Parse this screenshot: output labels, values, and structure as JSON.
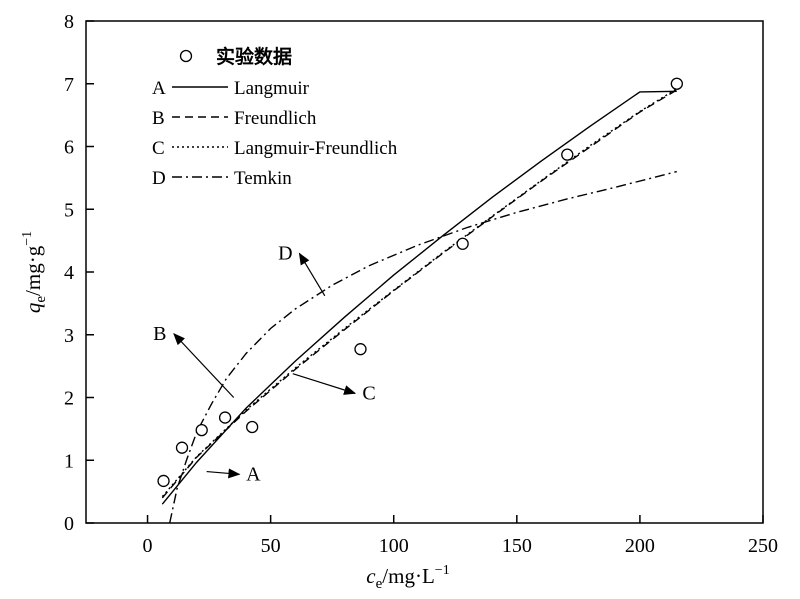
{
  "chart_data": {
    "type": "scatter",
    "xlim": [
      -25,
      250
    ],
    "ylim": [
      0,
      8
    ],
    "x_ticks": [
      0,
      50,
      100,
      150,
      200,
      250
    ],
    "y_ticks": [
      0,
      1,
      2,
      3,
      4,
      5,
      6,
      7,
      8
    ],
    "x_tick_labels": [
      "0",
      "50",
      "100",
      "150",
      "200",
      "250"
    ],
    "y_tick_labels": [
      "0",
      "1",
      "2",
      "3",
      "4",
      "5",
      "6",
      "7",
      "8"
    ],
    "xlabel": {
      "main": "c",
      "sub": "e",
      "unit": "/mg·L",
      "sup": "−1"
    },
    "ylabel": {
      "main": "q",
      "sub": "e",
      "unit": "/mg·g",
      "sup": "−1"
    },
    "grid": false,
    "legend_position": "top-left",
    "legend": [
      {
        "letter": "",
        "name": "实验数据",
        "style": "marker"
      },
      {
        "letter": "A",
        "name": "Langmuir",
        "style": "solid"
      },
      {
        "letter": "B",
        "name": "Freundlich",
        "style": "dashed"
      },
      {
        "letter": "C",
        "name": "Langmuir-Freundlich",
        "style": "dotted"
      },
      {
        "letter": "D",
        "name": "Temkin",
        "style": "dashdot"
      }
    ],
    "scatter_points": {
      "x": [
        6.5,
        14,
        22,
        31.5,
        42.5,
        86.5,
        128,
        170.5,
        215
      ],
      "y": [
        0.67,
        1.2,
        1.48,
        1.68,
        1.53,
        2.77,
        4.45,
        5.87,
        7.0
      ]
    },
    "series": [
      {
        "letter": "A",
        "style": "solid",
        "x": [
          6,
          20,
          40,
          60,
          80,
          100,
          120,
          140,
          160,
          180,
          200,
          215
        ],
        "y": [
          0.3,
          0.97,
          1.83,
          2.58,
          3.28,
          3.95,
          4.58,
          5.19,
          5.77,
          6.33,
          6.87,
          6.88
        ]
      },
      {
        "letter": "B",
        "style": "dashed",
        "x": [
          6,
          20,
          40,
          60,
          80,
          100,
          120,
          140,
          160,
          180,
          200,
          215
        ],
        "y": [
          0.4,
          1.05,
          1.78,
          2.45,
          3.08,
          3.7,
          4.3,
          4.88,
          5.45,
          6.0,
          6.55,
          6.9
        ]
      },
      {
        "letter": "C",
        "style": "dotted",
        "x": [
          6,
          20,
          40,
          60,
          80,
          100,
          120,
          140,
          160,
          180,
          200,
          215
        ],
        "y": [
          0.42,
          1.06,
          1.8,
          2.47,
          3.1,
          3.71,
          4.31,
          4.89,
          5.46,
          6.02,
          6.56,
          6.92
        ]
      },
      {
        "letter": "D",
        "style": "dashdot",
        "x": [
          9,
          12,
          16,
          20,
          26,
          32,
          40,
          50,
          60,
          75,
          90,
          110,
          130,
          150,
          170,
          190,
          215
        ],
        "y": [
          0.0,
          0.55,
          1.02,
          1.45,
          1.9,
          2.3,
          2.7,
          3.1,
          3.41,
          3.79,
          4.1,
          4.43,
          4.71,
          4.95,
          5.16,
          5.35,
          5.6
        ]
      }
    ],
    "annotations": [
      {
        "text": "A",
        "label_x": 43,
        "label_y": 0.68,
        "tip_x": 24,
        "tip_y": 0.82
      },
      {
        "text": "B",
        "label_x": 5,
        "label_y": 2.92,
        "tip_x": 35,
        "tip_y": 2.0
      },
      {
        "text": "C",
        "label_x": 90,
        "label_y": 1.97,
        "tip_x": 59,
        "tip_y": 2.38
      },
      {
        "text": "D",
        "label_x": 56,
        "label_y": 4.2,
        "tip_x": 72,
        "tip_y": 3.62
      }
    ]
  }
}
